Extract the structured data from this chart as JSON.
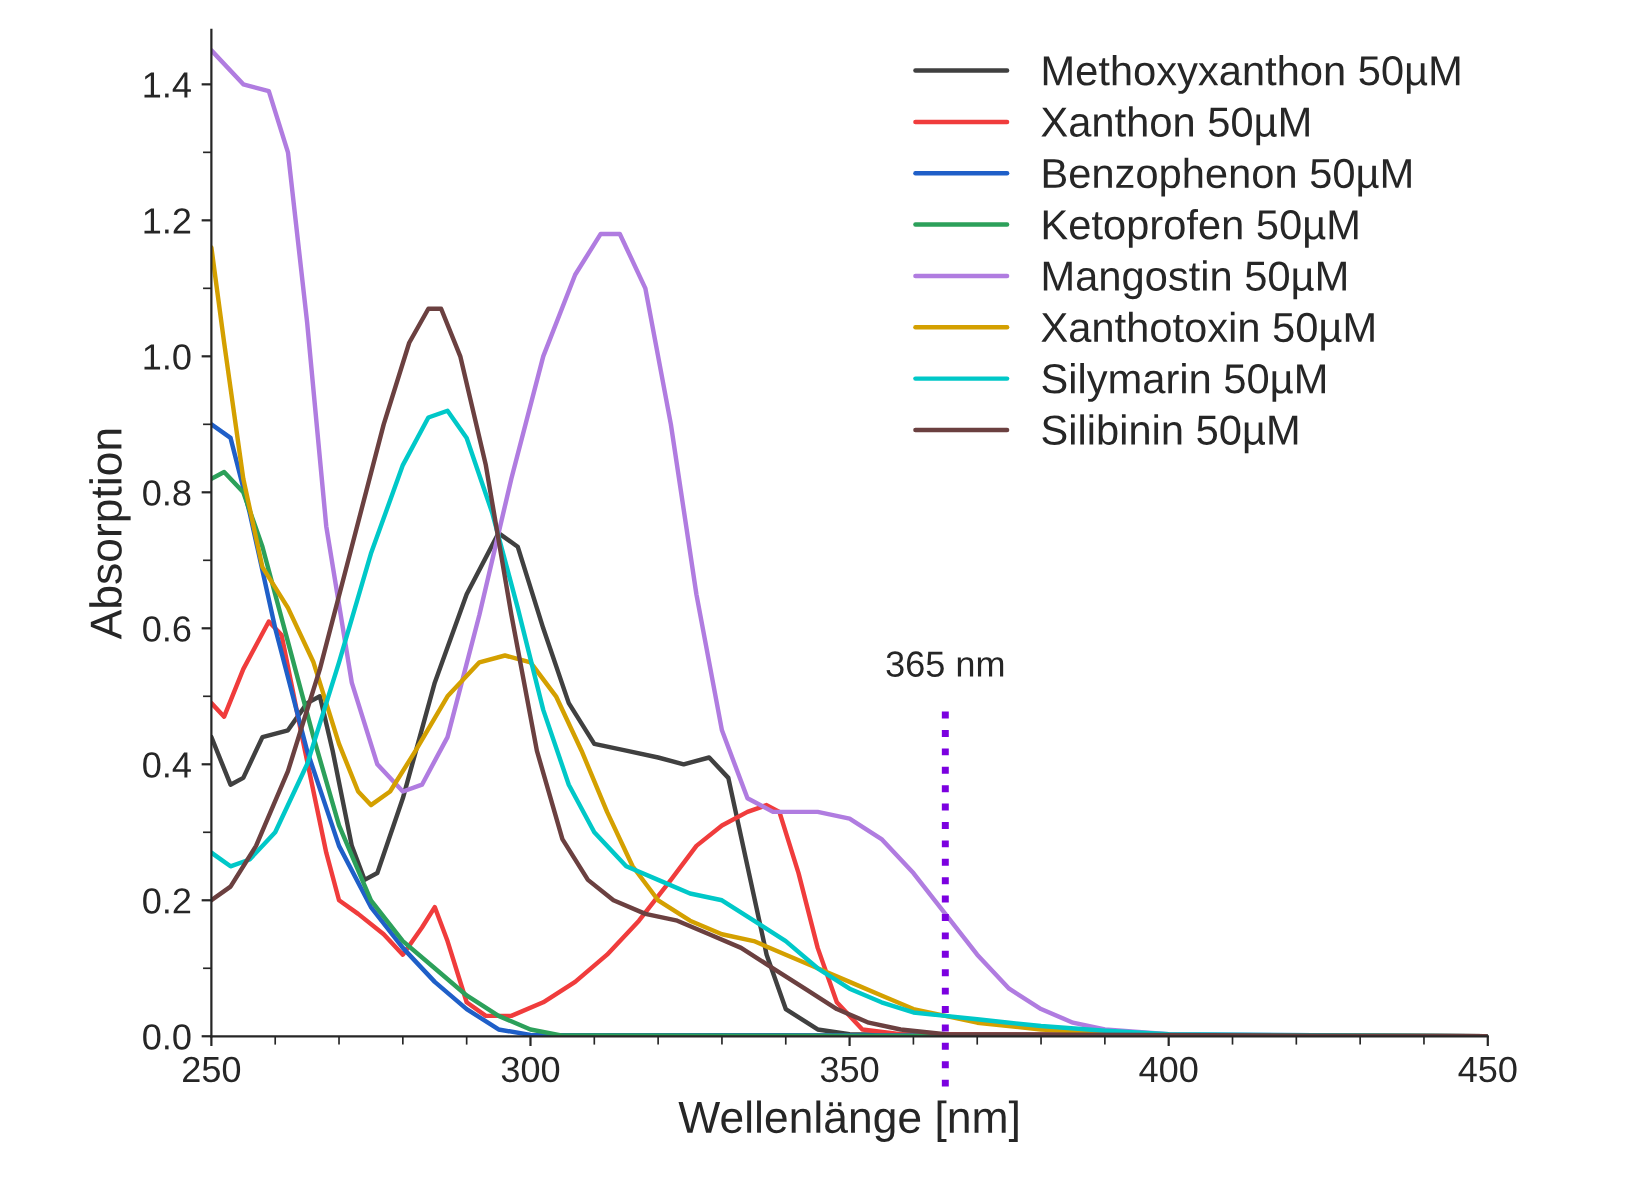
{
  "chart_data": {
    "type": "line",
    "xlabel": "Wellenlänge [nm]",
    "ylabel": "Absorption",
    "xlim": [
      250,
      450
    ],
    "xticks": [
      250,
      300,
      350,
      400,
      450
    ],
    "ylim": [
      0,
      1.48
    ],
    "yticks": [
      {
        "value": 0,
        "label": "0.0"
      },
      0.2,
      0.4,
      0.6,
      0.8,
      {
        "value": 1,
        "label": "1.0"
      },
      1.2,
      1.4
    ],
    "grid": false,
    "legend": "top right",
    "marker": "none",
    "line_style": "solid",
    "ref_lines": [
      {
        "axis": "x",
        "value": 365,
        "label": "365 nm",
        "color": "#7b00e0",
        "line_style": "dotted"
      }
    ],
    "series": [
      {
        "name": "Methoxyxanthon 50µM",
        "color": "#404040",
        "x": [
          250,
          253,
          255,
          258,
          262,
          265,
          267,
          269,
          272,
          274,
          276,
          280,
          285,
          290,
          295,
          298,
          302,
          306,
          310,
          315,
          320,
          324,
          328,
          331,
          334,
          337,
          340,
          345,
          350,
          450
        ],
        "values": [
          0.44,
          0.37,
          0.38,
          0.44,
          0.45,
          0.49,
          0.5,
          0.42,
          0.28,
          0.23,
          0.24,
          0.35,
          0.52,
          0.65,
          0.74,
          0.72,
          0.6,
          0.49,
          0.43,
          0.42,
          0.41,
          0.4,
          0.41,
          0.38,
          0.25,
          0.12,
          0.04,
          0.01,
          0.003,
          0
        ]
      },
      {
        "name": "Xanthon 50µM",
        "color": "#f03c3c",
        "x": [
          250,
          252,
          255,
          259,
          261,
          264,
          268,
          270,
          273,
          277,
          280,
          283,
          285,
          287,
          290,
          293,
          297,
          302,
          307,
          312,
          317,
          322,
          326,
          330,
          334,
          337,
          339,
          342,
          345,
          348,
          352,
          358,
          450
        ],
        "values": [
          0.49,
          0.47,
          0.54,
          0.61,
          0.59,
          0.45,
          0.27,
          0.2,
          0.18,
          0.15,
          0.12,
          0.16,
          0.19,
          0.14,
          0.05,
          0.03,
          0.03,
          0.05,
          0.08,
          0.12,
          0.17,
          0.23,
          0.28,
          0.31,
          0.33,
          0.34,
          0.33,
          0.24,
          0.13,
          0.05,
          0.01,
          0.003,
          0
        ]
      },
      {
        "name": "Benzophenon 50µM",
        "color": "#1f5fc8",
        "x": [
          250,
          253,
          256,
          260,
          265,
          270,
          275,
          280,
          285,
          290,
          295,
          300,
          450
        ],
        "values": [
          0.9,
          0.88,
          0.77,
          0.6,
          0.42,
          0.28,
          0.19,
          0.13,
          0.08,
          0.04,
          0.01,
          0.002,
          0
        ]
      },
      {
        "name": "Ketoprofen 50µM",
        "color": "#2ca05a",
        "x": [
          250,
          252,
          255,
          258,
          262,
          266,
          270,
          275,
          280,
          285,
          290,
          295,
          300,
          305,
          450
        ],
        "values": [
          0.82,
          0.83,
          0.8,
          0.72,
          0.58,
          0.44,
          0.31,
          0.2,
          0.14,
          0.1,
          0.06,
          0.03,
          0.01,
          0.001,
          0
        ]
      },
      {
        "name": "Mangostin 50µM",
        "color": "#b07ce0",
        "x": [
          250,
          255,
          259,
          262,
          265,
          268,
          272,
          276,
          280,
          283,
          287,
          292,
          297,
          302,
          307,
          311,
          314,
          318,
          322,
          326,
          330,
          334,
          338,
          345,
          350,
          355,
          360,
          365,
          370,
          375,
          380,
          385,
          390,
          400,
          450
        ],
        "values": [
          1.45,
          1.4,
          1.39,
          1.3,
          1.05,
          0.75,
          0.52,
          0.4,
          0.36,
          0.37,
          0.44,
          0.62,
          0.82,
          1.0,
          1.12,
          1.18,
          1.18,
          1.1,
          0.9,
          0.65,
          0.45,
          0.35,
          0.33,
          0.33,
          0.32,
          0.29,
          0.24,
          0.18,
          0.12,
          0.07,
          0.04,
          0.02,
          0.01,
          0.003,
          0
        ]
      },
      {
        "name": "Xanthotoxin 50µM",
        "color": "#d4a000",
        "x": [
          250,
          252,
          255,
          258,
          262,
          266,
          270,
          273,
          275,
          278,
          282,
          287,
          292,
          296,
          300,
          304,
          308,
          312,
          316,
          320,
          325,
          330,
          335,
          340,
          345,
          350,
          355,
          360,
          365,
          370,
          380,
          390,
          400,
          450
        ],
        "values": [
          1.16,
          1.02,
          0.82,
          0.69,
          0.63,
          0.55,
          0.43,
          0.36,
          0.34,
          0.36,
          0.42,
          0.5,
          0.55,
          0.56,
          0.55,
          0.5,
          0.42,
          0.33,
          0.25,
          0.2,
          0.17,
          0.15,
          0.14,
          0.12,
          0.1,
          0.08,
          0.06,
          0.04,
          0.03,
          0.02,
          0.01,
          0.005,
          0.002,
          0
        ]
      },
      {
        "name": "Silymarin 50µM",
        "color": "#00c8c8",
        "x": [
          250,
          253,
          256,
          260,
          265,
          270,
          275,
          280,
          284,
          287,
          290,
          294,
          298,
          302,
          306,
          310,
          315,
          320,
          325,
          330,
          335,
          340,
          345,
          350,
          355,
          360,
          365,
          370,
          375,
          380,
          390,
          400,
          450
        ],
        "values": [
          0.27,
          0.25,
          0.26,
          0.3,
          0.4,
          0.55,
          0.71,
          0.84,
          0.91,
          0.92,
          0.88,
          0.77,
          0.63,
          0.48,
          0.37,
          0.3,
          0.25,
          0.23,
          0.21,
          0.2,
          0.17,
          0.14,
          0.1,
          0.07,
          0.05,
          0.035,
          0.03,
          0.025,
          0.02,
          0.015,
          0.008,
          0.003,
          0
        ]
      },
      {
        "name": "Silibinin 50µM",
        "color": "#6b4040",
        "x": [
          250,
          253,
          257,
          262,
          267,
          272,
          277,
          281,
          284,
          286,
          289,
          293,
          297,
          301,
          305,
          309,
          313,
          318,
          323,
          328,
          333,
          338,
          343,
          348,
          353,
          358,
          365,
          450
        ],
        "values": [
          0.2,
          0.22,
          0.28,
          0.39,
          0.54,
          0.72,
          0.9,
          1.02,
          1.07,
          1.07,
          1.0,
          0.84,
          0.62,
          0.42,
          0.29,
          0.23,
          0.2,
          0.18,
          0.17,
          0.15,
          0.13,
          0.1,
          0.07,
          0.04,
          0.02,
          0.01,
          0.003,
          0
        ]
      }
    ]
  }
}
